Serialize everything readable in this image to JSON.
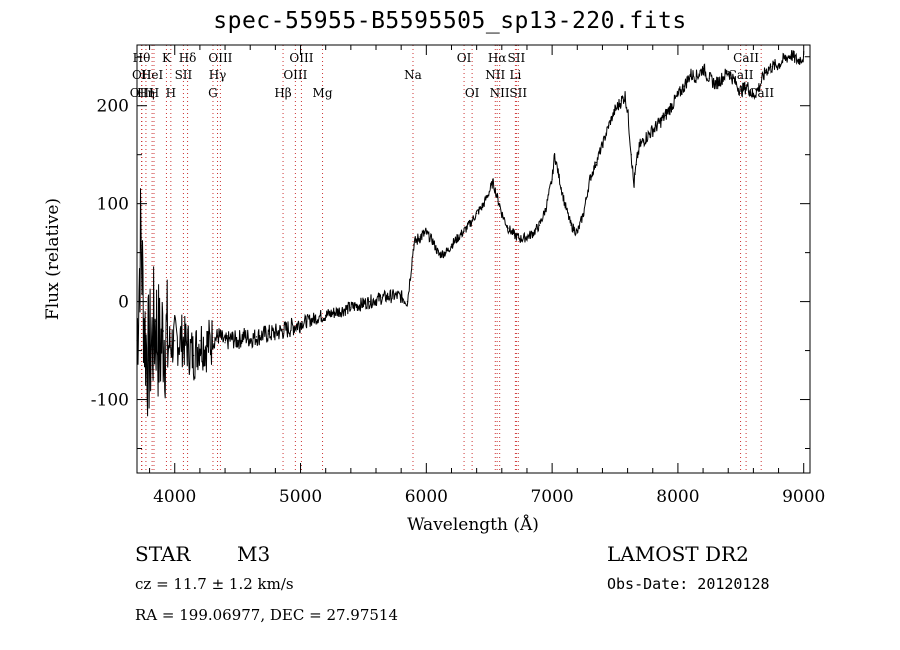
{
  "chart_data": {
    "type": "line",
    "title": "spec-55955-B5595505_sp13-220.fits",
    "xlabel": "Wavelength (Å)",
    "ylabel": "Flux (relative)",
    "xlim": [
      3700,
      9050
    ],
    "ylim": [
      -175,
      262
    ],
    "xticks": [
      4000,
      5000,
      6000,
      7000,
      8000,
      9000
    ],
    "yticks": [
      -100,
      0,
      100,
      200
    ],
    "grid": false,
    "line_color": "#000000",
    "marker_color": "#cc3333",
    "series": [
      {
        "x": [
          3700,
          3730,
          3760,
          3790,
          3820,
          3850,
          3880,
          3910,
          3950,
          4000,
          4050,
          4100,
          4150,
          4200,
          4250,
          4300,
          4350,
          4400,
          4450,
          4500,
          4550,
          4600,
          4650,
          4700,
          4750,
          4800,
          4850,
          4900,
          4950,
          5000,
          5050,
          5100,
          5150,
          5200,
          5250,
          5300,
          5350,
          5400,
          5450,
          5500,
          5550,
          5600,
          5650,
          5700,
          5750,
          5800,
          5850,
          5900,
          5920,
          5950,
          6000,
          6050,
          6100,
          6150,
          6170,
          6200,
          6250,
          6300,
          6350,
          6400,
          6450,
          6500,
          6530,
          6560,
          6580,
          6600,
          6650,
          6700,
          6750,
          6800,
          6850,
          6900,
          6950,
          7000,
          7020,
          7050,
          7100,
          7150,
          7200,
          7250,
          7300,
          7350,
          7400,
          7450,
          7500,
          7550,
          7580,
          7600,
          7630,
          7650,
          7660,
          7670,
          7680,
          7700,
          7750,
          7800,
          7850,
          7900,
          7950,
          8000,
          8050,
          8100,
          8150,
          8200,
          8250,
          8300,
          8350,
          8400,
          8450,
          8500,
          8550,
          8600,
          8650,
          8700,
          8750,
          8800,
          8850,
          8900,
          8950,
          9000
        ],
        "y": [
          -40,
          70,
          -30,
          -60,
          -40,
          -20,
          -50,
          -30,
          -45,
          -40,
          -38,
          -45,
          -55,
          -40,
          -45,
          -40,
          -35,
          -42,
          -38,
          -40,
          -35,
          -38,
          -36,
          -34,
          -33,
          -32,
          -30,
          -28,
          -25,
          -22,
          -20,
          -18,
          -15,
          -14,
          -12,
          -10,
          -8,
          -6,
          -4,
          -2,
          0,
          2,
          4,
          5,
          6,
          5,
          0,
          58,
          62,
          66,
          70,
          62,
          48,
          50,
          52,
          58,
          65,
          72,
          80,
          90,
          98,
          112,
          122,
          108,
          100,
          90,
          75,
          68,
          64,
          66,
          70,
          78,
          95,
          125,
          150,
          130,
          100,
          78,
          70,
          90,
          125,
          142,
          160,
          180,
          195,
          205,
          210,
          195,
          150,
          118,
          130,
          140,
          150,
          160,
          168,
          175,
          182,
          190,
          200,
          210,
          220,
          232,
          230,
          238,
          228,
          222,
          228,
          235,
          225,
          215,
          220,
          210,
          220,
          236,
          240,
          242,
          248,
          252,
          246,
          250
        ],
        "name": ""
      }
    ],
    "line_markers": [
      {
        "wave": 3736,
        "label": "Hθ",
        "row": 0
      },
      {
        "wave": 3737,
        "label": "OII",
        "row": 1
      },
      {
        "wave": 3738,
        "label": "OIII",
        "row": 2
      },
      {
        "wave": 3771,
        "label": "Hη",
        "row": 2
      },
      {
        "wave": 3820,
        "label": "HeI",
        "row": 1
      },
      {
        "wave": 3835,
        "label": "H",
        "row": 2
      },
      {
        "wave": 3934,
        "label": "K",
        "row": 0
      },
      {
        "wave": 3969,
        "label": "H",
        "row": 2
      },
      {
        "wave": 4069,
        "label": "SII",
        "row": 1
      },
      {
        "wave": 4102,
        "label": "Hδ",
        "row": 0
      },
      {
        "wave": 4304,
        "label": "G",
        "row": 2
      },
      {
        "wave": 4340,
        "label": "Hγ",
        "row": 1
      },
      {
        "wave": 4363,
        "label": "OIII",
        "row": 0
      },
      {
        "wave": 4861,
        "label": "Hβ",
        "row": 2
      },
      {
        "wave": 4959,
        "label": "OIII",
        "row": 1
      },
      {
        "wave": 5007,
        "label": "OIII",
        "row": 0
      },
      {
        "wave": 5175,
        "label": "Mg",
        "row": 2
      },
      {
        "wave": 5894,
        "label": "Na",
        "row": 1
      },
      {
        "wave": 6300,
        "label": "OI",
        "row": 0
      },
      {
        "wave": 6364,
        "label": "OI",
        "row": 2
      },
      {
        "wave": 6548,
        "label": "NII",
        "row": 1
      },
      {
        "wave": 6563,
        "label": "Hα",
        "row": 0
      },
      {
        "wave": 6583,
        "label": "NII",
        "row": 2
      },
      {
        "wave": 6708,
        "label": "Li",
        "row": 1
      },
      {
        "wave": 6716,
        "label": "SII",
        "row": 0
      },
      {
        "wave": 6731,
        "label": "SII",
        "row": 2
      },
      {
        "wave": 8498,
        "label": "CaII",
        "row": 1
      },
      {
        "wave": 8542,
        "label": "CaII",
        "row": 0
      },
      {
        "wave": 8662,
        "label": "CaII",
        "row": 2
      }
    ]
  },
  "info": {
    "object_class": "STAR",
    "subclass": "M3",
    "survey": "LAMOST DR2",
    "cz": "cz = 11.7 ± 1.2 km/s",
    "obs_date": "Obs-Date: 20120128",
    "coords": "RA = 199.06977, DEC =  27.97514"
  }
}
